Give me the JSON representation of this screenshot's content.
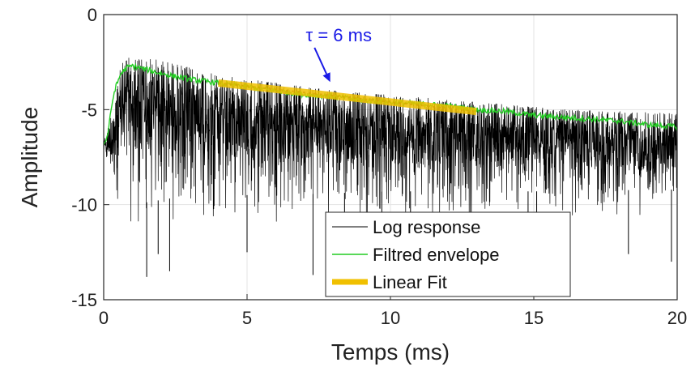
{
  "chart_data": {
    "type": "line",
    "title": "",
    "xlabel": "Temps (ms)",
    "ylabel": "Amplitude",
    "xlim": [
      0,
      20
    ],
    "ylim": [
      -15,
      0
    ],
    "xticks": [
      0,
      5,
      10,
      15,
      20
    ],
    "yticks": [
      0,
      -5,
      -10,
      -15
    ],
    "xtick_labels": [
      "0",
      "5",
      "10",
      "15",
      "20"
    ],
    "ytick_labels": [
      "0",
      "-5",
      "-10",
      "-15"
    ],
    "grid": true,
    "legend_position": "bottom-right",
    "series": [
      {
        "name": "Log response",
        "color": "#000000",
        "style": "noisy",
        "upper_envelope": {
          "x": [
            0,
            0.1,
            0.3,
            0.5,
            0.7,
            1.0,
            2,
            4,
            8,
            13,
            16,
            20
          ],
          "y": [
            -6.6,
            -6.3,
            -5.0,
            -3.2,
            -2.4,
            -2.2,
            -2.4,
            -3.2,
            -4.0,
            -4.6,
            -5.0,
            -5.2
          ]
        },
        "lower_envelope": {
          "x": [
            0,
            0.3,
            1,
            3,
            6,
            10,
            15,
            20
          ],
          "y": [
            -7.5,
            -9.5,
            -11.5,
            -11.0,
            -11.0,
            -10.8,
            -10.8,
            -10.7
          ]
        },
        "deep_spikes": {
          "x": [
            1.5,
            1.9,
            2.3,
            5.0,
            7.3,
            8.4,
            9.7,
            10.7,
            14.8,
            15.1,
            18.3,
            19.8
          ],
          "y": [
            -13.8,
            -12.6,
            -13.5,
            -12.5,
            -13.7,
            -12.0,
            -12.4,
            -13.6,
            -12.2,
            -11.9,
            -12.6,
            -13.0
          ]
        }
      },
      {
        "name": "Filtred envelope",
        "color": "#22cc22",
        "x": [
          0,
          0.1,
          0.2,
          0.3,
          0.4,
          0.5,
          0.6,
          0.8,
          1.0,
          1.5,
          2,
          3,
          4,
          5,
          6,
          7,
          8,
          9,
          10,
          11,
          12,
          13,
          14,
          15,
          16,
          17,
          18,
          19,
          20
        ],
        "y": [
          -6.8,
          -6.6,
          -5.7,
          -4.6,
          -3.9,
          -3.5,
          -3.1,
          -2.8,
          -2.7,
          -2.9,
          -3.1,
          -3.4,
          -3.6,
          -3.8,
          -4.0,
          -4.2,
          -4.3,
          -4.5,
          -4.6,
          -4.7,
          -4.8,
          -5.0,
          -5.1,
          -5.3,
          -5.4,
          -5.5,
          -5.6,
          -5.8,
          -5.9
        ]
      },
      {
        "name": "Linear Fit",
        "color": "#f0c000",
        "x": [
          4,
          13
        ],
        "y": [
          -3.6,
          -5.1
        ]
      }
    ],
    "annotations": [
      {
        "text": "τ = 6 ms",
        "x": 8.2,
        "y": -1.4,
        "arrow_to": [
          7.9,
          -3.55
        ],
        "color": "#1a1ae6"
      }
    ]
  }
}
